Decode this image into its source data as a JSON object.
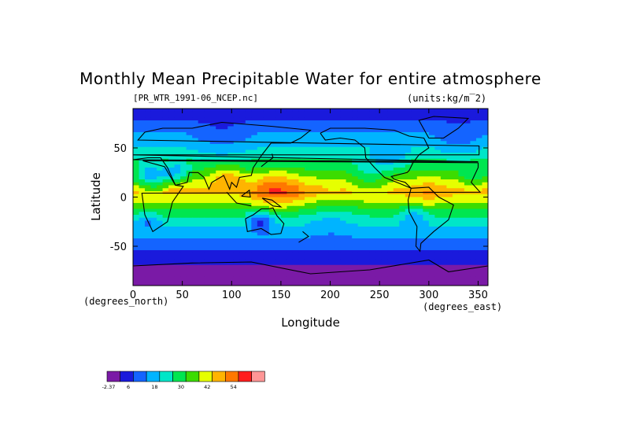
{
  "chart_data": {
    "type": "heatmap",
    "title": "Monthly Mean Precipitable Water for entire atmosphere",
    "subtitle_left": "[PR_WTR_1991-06_NCEP.nc]",
    "subtitle_right": "(units:kg/m^2)",
    "xlabel": "Longitude",
    "ylabel": "Latitude",
    "x_units_label": "(degrees_east)",
    "y_units_label": "(degrees_north)",
    "xlim": [
      0,
      360
    ],
    "ylim": [
      -90,
      90
    ],
    "x_ticks": [
      0,
      50,
      100,
      150,
      200,
      250,
      300,
      350
    ],
    "y_ticks": [
      -50,
      0,
      50
    ],
    "grid": false,
    "colorbar": {
      "colors": [
        "#7a1aa6",
        "#1a1adc",
        "#1464ff",
        "#00b4ff",
        "#00e6c8",
        "#00e650",
        "#3cdc00",
        "#e6ff00",
        "#ffb400",
        "#ff7800",
        "#ff1e1e",
        "#ff9696"
      ],
      "tick_labels": [
        "-2.37",
        "6",
        "18",
        "30",
        "42",
        "54"
      ]
    },
    "zonal_profile_kg_m2": [
      {
        "lat": 90,
        "value": 6
      },
      {
        "lat": 75,
        "value": 14
      },
      {
        "lat": 60,
        "value": 20
      },
      {
        "lat": 45,
        "value": 26
      },
      {
        "lat": 30,
        "value": 34
      },
      {
        "lat": 15,
        "value": 44
      },
      {
        "lat": 5,
        "value": 50
      },
      {
        "lat": 0,
        "value": 46
      },
      {
        "lat": -10,
        "value": 38
      },
      {
        "lat": -20,
        "value": 30
      },
      {
        "lat": -35,
        "value": 22
      },
      {
        "lat": -50,
        "value": 14
      },
      {
        "lat": -65,
        "value": 8
      },
      {
        "lat": -80,
        "value": 2
      }
    ]
  }
}
